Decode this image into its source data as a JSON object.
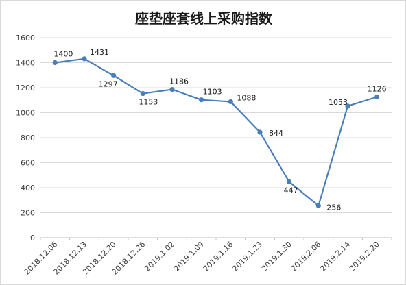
{
  "chart_data": {
    "type": "line",
    "title": "座垫座套线上采购指数",
    "categories": [
      "2018.12.06",
      "2018.12.13",
      "2018.12.20",
      "2018.12.26",
      "2019.1.02",
      "2019.1.09",
      "2019.1.16",
      "2019.1.23",
      "2019.1.30",
      "2019.2.06",
      "2019.2.14",
      "2019.2.20"
    ],
    "series": [
      {
        "values": [
          1400,
          1431,
          1297,
          1153,
          1186,
          1103,
          1088,
          844,
          447,
          256,
          1053,
          1126
        ]
      }
    ],
    "ylim": [
      0,
      1600
    ],
    "yticks": [
      0,
      200,
      400,
      600,
      800,
      1000,
      1200,
      1400,
      1600
    ],
    "grid": true,
    "legend": "none",
    "line_color": "#4a7ebb"
  }
}
